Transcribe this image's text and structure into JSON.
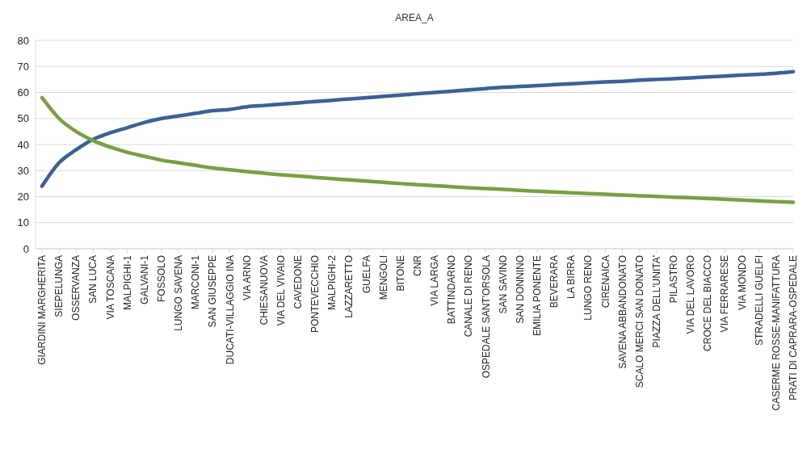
{
  "chart_data": {
    "type": "line",
    "title": "AREA_A",
    "categories": [
      "GIARDINI MARGHERITA",
      "SIEPELUNGA",
      "OSSERVANZA",
      "SAN LUCA",
      "VIA TOSCANA",
      "MALPIGHI-1",
      "GALVANI-1",
      "FOSSOLO",
      "LUNGO SAVENA",
      "MARCONI-1",
      "SAN GIUSEPPE",
      "DUCATI-VILLAGGIO INA",
      "VIA ARNO",
      "CHIESANUOVA",
      "VIA DEL VIVAIO",
      "CAVEDONE",
      "PONTEVECCHIO",
      "MALPIGHI-2",
      "LAZZARETTO",
      "GUELFA",
      "MENGOLI",
      "BITONE",
      "CNR",
      "VIA LARGA",
      "BATTINDARNO",
      "CANALE DI RENO",
      "OSPEDALE SANT'ORSOLA",
      "SAN SAVINO",
      "SAN DONNINO",
      "EMILIA PONENTE",
      "BEVERARA",
      "LA BIRRA",
      "LUNGO RENO",
      "CIRENAICA",
      "SAVENA ABBANDONATO",
      "SCALO MERCI SAN DONATO",
      "PIAZZA DELL'UNITA'",
      "PILASTRO",
      "VIA DEL LAVORO",
      "CROCE DEL BIACCO",
      "VIA FERRARESE",
      "VIA MONDO",
      "STRADELLI GUELFI",
      "CASERME ROSSE-MANIFATTURA",
      "PRATI DI CAPRARA-OSPEDALE"
    ],
    "series": [
      {
        "color": "#3b6194",
        "values": [
          24,
          33,
          38,
          42,
          44.5,
          46.5,
          48.5,
          50,
          51,
          52,
          53,
          53.5,
          54.5,
          55,
          55.5,
          56,
          56.5,
          57,
          57.5,
          58,
          58.5,
          59,
          59.5,
          60,
          60.5,
          61,
          61.5,
          62,
          62.3,
          62.6,
          63,
          63.3,
          63.7,
          64,
          64.3,
          64.7,
          65,
          65.3,
          65.6,
          66,
          66.3,
          66.7,
          67,
          67.4,
          68
        ]
      },
      {
        "color": "#77a043",
        "values": [
          58,
          50,
          45,
          41.5,
          39,
          37,
          35.5,
          34,
          33,
          32,
          31,
          30.3,
          29.6,
          29,
          28.4,
          27.9,
          27.4,
          26.9,
          26.4,
          26,
          25.5,
          25,
          24.6,
          24.2,
          23.8,
          23.4,
          23.1,
          22.8,
          22.4,
          22.1,
          21.8,
          21.5,
          21.2,
          20.9,
          20.6,
          20.3,
          20.1,
          19.8,
          19.6,
          19.3,
          19,
          18.7,
          18.4,
          18.1,
          17.8
        ]
      }
    ],
    "ylim": [
      0,
      80
    ],
    "yticks": [
      0,
      10,
      20,
      30,
      40,
      50,
      60,
      70,
      80
    ],
    "grid": "y",
    "line_style": "solid"
  }
}
